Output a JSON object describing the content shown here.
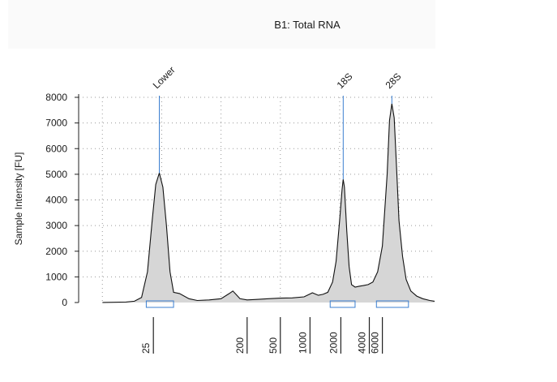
{
  "chart_data": {
    "type": "line",
    "title": "B1: Total RNA",
    "ylabel": "Sample Intensity [FU]",
    "xlabel": "",
    "ylim": [
      0,
      8000
    ],
    "yticks": [
      0,
      1000,
      2000,
      3000,
      4000,
      5000,
      6000,
      7000,
      8000
    ],
    "grid": true,
    "x_scale": "electrophoresis time",
    "ladder_axis": {
      "ticks": [
        {
          "label": "25",
          "t": 24.3
        },
        {
          "label": "200",
          "t": 32.2
        },
        {
          "label": "500",
          "t": 35.0
        },
        {
          "label": "1000",
          "t": 37.5
        },
        {
          "label": "2000",
          "t": 40.1
        },
        {
          "label": "4000",
          "t": 42.5
        },
        {
          "label": "6000",
          "t": 43.6
        }
      ]
    },
    "peaks": [
      {
        "label": "Lower",
        "t": 24.8,
        "height": 5050,
        "window": [
          23.7,
          26.0
        ]
      },
      {
        "label": "18S",
        "t": 40.3,
        "height": 4800,
        "window": [
          39.2,
          41.3
        ]
      },
      {
        "label": "28S",
        "t": 44.4,
        "height": 7750,
        "window": [
          43.1,
          45.8
        ]
      }
    ],
    "series": [
      {
        "x": [
          20.0,
          22.0,
          22.7,
          23.3,
          23.8,
          24.2,
          24.5,
          24.8,
          25.1,
          25.4,
          25.7,
          26.0,
          26.5,
          27.3,
          28.0,
          29.0,
          30.0,
          30.7,
          31.0,
          31.3,
          31.6,
          32.2,
          33.0,
          34.0,
          35.0,
          36.0,
          37.0,
          37.7,
          38.2,
          38.6,
          39.0,
          39.4,
          39.7,
          40.0,
          40.2,
          40.3,
          40.4,
          40.6,
          40.8,
          41.0,
          41.3,
          41.6,
          42.0,
          42.4,
          42.8,
          43.2,
          43.6,
          44.0,
          44.2,
          44.4,
          44.6,
          44.8,
          45.0,
          45.3,
          45.6,
          46.0,
          46.5,
          47.0,
          47.6,
          48.0
        ],
        "y": [
          0,
          20,
          50,
          200,
          1200,
          3200,
          4600,
          5050,
          4500,
          3000,
          1200,
          400,
          350,
          150,
          80,
          100,
          150,
          350,
          450,
          300,
          150,
          100,
          120,
          150,
          170,
          180,
          220,
          380,
          280,
          320,
          400,
          800,
          1600,
          3200,
          4400,
          4800,
          4500,
          2800,
          1400,
          700,
          600,
          630,
          660,
          700,
          800,
          1200,
          2200,
          5000,
          7100,
          7750,
          7200,
          5200,
          3200,
          1800,
          900,
          450,
          250,
          150,
          80,
          50
        ]
      }
    ]
  }
}
